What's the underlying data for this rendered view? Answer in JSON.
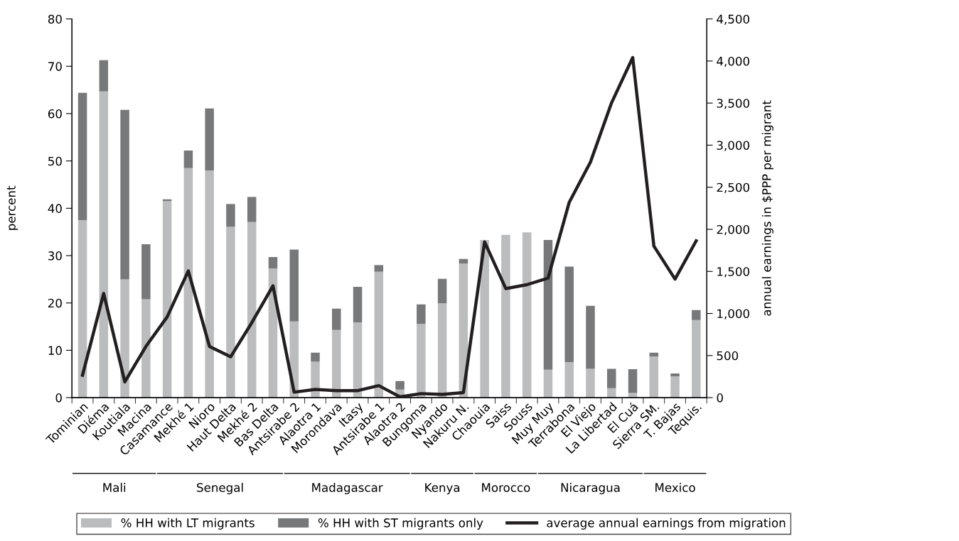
{
  "chart_data": {
    "type": "bar",
    "stacked": true,
    "ylabel": "percent",
    "y2label": "annual earnings in $PPP per migrant",
    "categories": [
      "Tominian",
      "Diéma",
      "Koutiala",
      "Macina",
      "Casamance",
      "Mekhé 1",
      "Nioro",
      "Haut Delta",
      "Mekhé 2",
      "Bas Delta",
      "Antsirabe 2",
      "Alaotra 1",
      "Morondava",
      "Itasy",
      "Antsirabe 1",
      "Alaotra 2",
      "Bungoma",
      "Nyando",
      "Nakuru N.",
      "Chaouia",
      "Saiss",
      "Souss",
      "Muy Muy",
      "Terrabona",
      "El Viejo",
      "La Libertad",
      "El Cuá",
      "Sierra SM.",
      "T. Bajas",
      "Tequis."
    ],
    "series": [
      {
        "name": "% HH with LT migrants",
        "color": "#bbbcbe",
        "values": [
          37.5,
          64.7,
          25.0,
          20.8,
          41.5,
          48.5,
          48.0,
          36.1,
          37.1,
          27.3,
          16.1,
          7.6,
          14.3,
          15.9,
          26.6,
          1.7,
          15.6,
          19.9,
          28.3,
          33.3,
          34.4,
          34.9,
          5.9,
          7.5,
          6.1,
          2.0,
          1.0,
          8.7,
          4.5,
          16.4
        ]
      },
      {
        "name": "% HH with ST migrants only",
        "color": "#77787a",
        "values": [
          26.9,
          6.6,
          35.8,
          11.6,
          0.4,
          3.7,
          13.1,
          4.8,
          5.3,
          2.4,
          15.2,
          1.9,
          4.5,
          7.5,
          1.4,
          1.8,
          4.1,
          5.2,
          1.0,
          0,
          0,
          0,
          27.4,
          20.2,
          13.3,
          4.1,
          5.0,
          0.8,
          0.6,
          2.1
        ]
      },
      {
        "name": "average annual earnings from migration",
        "type": "line",
        "axis": "y2",
        "color": "#231f20",
        "values": [
          267,
          1238,
          187,
          610,
          959,
          1506,
          609,
          485,
          891,
          1329,
          65,
          98,
          83,
          83,
          143,
          10,
          48,
          39,
          60,
          1851,
          1296,
          1342,
          1420,
          2321,
          2798,
          3503,
          4042,
          1801,
          1408,
          1863
        ]
      }
    ],
    "ylim": [
      0,
      80
    ],
    "yticks": [
      0,
      10,
      20,
      30,
      40,
      50,
      60,
      70,
      80
    ],
    "y2lim": [
      0,
      4500
    ],
    "y2ticks": [
      {
        "value": 0,
        "label": "0"
      },
      {
        "value": 500,
        "label": "500"
      },
      {
        "value": 1000,
        "label": "1,000"
      },
      {
        "value": 1500,
        "label": "1,500"
      },
      {
        "value": 2000,
        "label": "2,000"
      },
      {
        "value": 2500,
        "label": "2,500"
      },
      {
        "value": 3000,
        "label": "3,000"
      },
      {
        "value": 3500,
        "label": "3,500"
      },
      {
        "value": 4000,
        "label": "4,000"
      },
      {
        "value": 4500,
        "label": "4,500"
      }
    ],
    "annotations": [
      "Mali",
      "Senegal",
      "Madagascar",
      "Kenya",
      "Morocco",
      "Nicaragua",
      "Mexico"
    ],
    "legend": "bottom",
    "grid": false
  }
}
